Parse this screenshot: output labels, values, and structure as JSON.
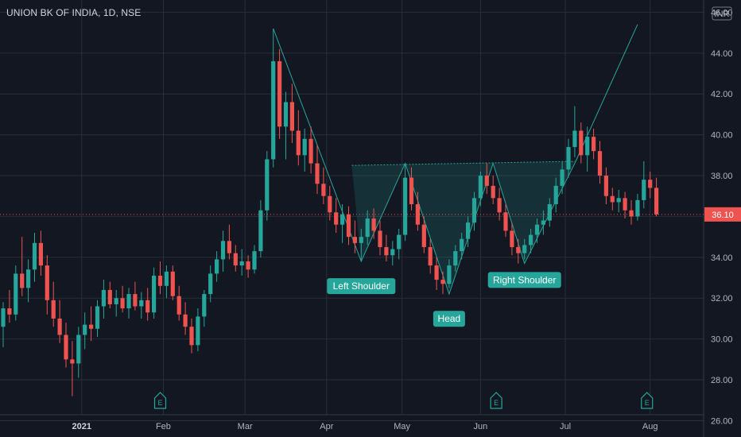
{
  "header": {
    "title": "UNION BK OF INDIA, 1D, NSE"
  },
  "currency": "INR",
  "colors": {
    "background": "#131722",
    "up": "#26a69a",
    "down": "#ef5350",
    "grid": "#2a2e39",
    "pattern": "#26a69a"
  },
  "chart_data": {
    "type": "candlestick",
    "title": "UNION BK OF INDIA, 1D, NSE",
    "ylim": [
      25.2,
      46.6
    ],
    "yticks": [
      "26.00",
      "28.00",
      "30.00",
      "32.00",
      "34.00",
      "36.00",
      "38.00",
      "40.00",
      "42.00",
      "44.00",
      "46.00"
    ],
    "x_tick_labels": [
      "2021",
      "Feb",
      "Mar",
      "Apr",
      "May",
      "Jun",
      "Jul",
      "Aug"
    ],
    "last_price": "36.10",
    "grid": true,
    "series": [
      {
        "ohlc": [
          [
            30.6,
            31.8,
            29.6,
            31.5
          ],
          [
            31.5,
            32.4,
            30.8,
            31.2
          ],
          [
            31.2,
            33.6,
            30.9,
            33.2
          ],
          [
            33.2,
            35.0,
            32.1,
            32.5
          ],
          [
            32.5,
            33.9,
            31.8,
            33.4
          ],
          [
            33.4,
            35.2,
            32.8,
            34.7
          ],
          [
            34.7,
            35.3,
            33.1,
            33.6
          ],
          [
            33.6,
            34.1,
            31.2,
            31.9
          ],
          [
            31.9,
            32.8,
            30.6,
            31.0
          ],
          [
            31.0,
            31.9,
            29.8,
            30.2
          ],
          [
            30.2,
            30.8,
            28.6,
            29.0
          ],
          [
            29.0,
            29.9,
            27.2,
            28.8
          ],
          [
            28.8,
            30.6,
            28.1,
            30.2
          ],
          [
            30.2,
            31.3,
            29.5,
            30.7
          ],
          [
            30.7,
            31.6,
            29.9,
            30.5
          ],
          [
            30.5,
            31.9,
            30.1,
            31.6
          ],
          [
            31.6,
            32.9,
            31.0,
            32.4
          ],
          [
            32.4,
            32.8,
            31.5,
            31.7
          ],
          [
            31.7,
            32.4,
            31.1,
            32.0
          ],
          [
            32.0,
            32.6,
            31.3,
            31.5
          ],
          [
            31.5,
            32.5,
            31.0,
            32.2
          ],
          [
            32.2,
            32.8,
            31.4,
            31.6
          ],
          [
            31.6,
            32.3,
            31.0,
            31.9
          ],
          [
            31.9,
            32.5,
            30.9,
            31.3
          ],
          [
            31.3,
            33.5,
            31.0,
            33.1
          ],
          [
            33.1,
            33.8,
            32.2,
            32.6
          ],
          [
            32.6,
            33.6,
            32.0,
            33.3
          ],
          [
            33.3,
            33.6,
            31.9,
            32.1
          ],
          [
            32.1,
            32.6,
            30.9,
            31.2
          ],
          [
            31.2,
            31.8,
            30.2,
            30.6
          ],
          [
            30.6,
            31.0,
            29.3,
            29.7
          ],
          [
            29.7,
            31.5,
            29.4,
            31.1
          ],
          [
            31.1,
            32.4,
            30.6,
            32.2
          ],
          [
            32.2,
            33.6,
            31.8,
            33.2
          ],
          [
            33.2,
            34.3,
            32.8,
            33.9
          ],
          [
            33.9,
            35.3,
            33.3,
            34.8
          ],
          [
            34.8,
            35.6,
            33.9,
            34.2
          ],
          [
            34.2,
            34.6,
            33.3,
            33.6
          ],
          [
            33.6,
            34.4,
            33.1,
            33.8
          ],
          [
            33.8,
            34.1,
            33.0,
            33.4
          ],
          [
            33.4,
            34.6,
            33.2,
            34.3
          ],
          [
            34.3,
            36.8,
            34.0,
            36.3
          ],
          [
            36.3,
            39.2,
            35.8,
            38.8
          ],
          [
            38.8,
            45.2,
            38.4,
            43.6
          ],
          [
            43.6,
            44.2,
            39.8,
            40.4
          ],
          [
            40.4,
            42.1,
            38.8,
            41.6
          ],
          [
            41.6,
            42.5,
            39.6,
            40.2
          ],
          [
            40.2,
            41.2,
            38.5,
            39.0
          ],
          [
            39.0,
            40.3,
            38.2,
            39.8
          ],
          [
            39.8,
            40.4,
            38.1,
            38.6
          ],
          [
            38.6,
            39.5,
            37.1,
            37.6
          ],
          [
            37.6,
            38.4,
            36.6,
            37.0
          ],
          [
            37.0,
            37.5,
            35.8,
            36.2
          ],
          [
            36.2,
            36.9,
            35.2,
            35.6
          ],
          [
            35.6,
            36.6,
            34.7,
            36.1
          ],
          [
            36.1,
            36.5,
            34.6,
            35.0
          ],
          [
            35.0,
            35.8,
            34.2,
            34.7
          ],
          [
            34.7,
            35.4,
            33.8,
            35.0
          ],
          [
            35.0,
            36.3,
            34.6,
            35.9
          ],
          [
            35.9,
            36.4,
            34.9,
            35.3
          ],
          [
            35.3,
            35.8,
            34.1,
            34.5
          ],
          [
            34.5,
            35.1,
            33.8,
            34.1
          ],
          [
            34.1,
            34.8,
            33.6,
            34.4
          ],
          [
            34.4,
            35.4,
            33.9,
            35.1
          ],
          [
            35.1,
            38.6,
            34.8,
            37.9
          ],
          [
            37.9,
            38.4,
            36.3,
            36.6
          ],
          [
            36.6,
            37.2,
            35.3,
            35.6
          ],
          [
            35.6,
            36.0,
            34.2,
            34.5
          ],
          [
            34.5,
            34.9,
            33.2,
            33.6
          ],
          [
            33.6,
            34.0,
            32.4,
            32.9
          ],
          [
            32.9,
            33.3,
            32.2,
            32.7
          ],
          [
            32.7,
            33.9,
            32.5,
            33.6
          ],
          [
            33.6,
            34.6,
            33.3,
            34.3
          ],
          [
            34.3,
            35.2,
            33.9,
            34.9
          ],
          [
            34.9,
            36.0,
            34.5,
            35.7
          ],
          [
            35.7,
            37.2,
            35.3,
            36.9
          ],
          [
            36.9,
            38.2,
            36.5,
            38.0
          ],
          [
            38.0,
            38.6,
            37.1,
            37.5
          ],
          [
            37.5,
            38.0,
            36.6,
            36.9
          ],
          [
            36.9,
            37.4,
            35.8,
            36.2
          ],
          [
            36.2,
            36.6,
            35.0,
            35.3
          ],
          [
            35.3,
            35.7,
            34.1,
            34.5
          ],
          [
            34.5,
            34.9,
            33.7,
            34.2
          ],
          [
            34.2,
            34.9,
            33.9,
            34.6
          ],
          [
            34.6,
            35.4,
            34.2,
            35.1
          ],
          [
            35.1,
            35.9,
            34.7,
            35.6
          ],
          [
            35.6,
            36.3,
            35.1,
            35.8
          ],
          [
            35.8,
            36.9,
            35.5,
            36.6
          ],
          [
            36.6,
            37.9,
            36.2,
            37.5
          ],
          [
            37.5,
            38.7,
            37.1,
            38.3
          ],
          [
            38.3,
            39.8,
            37.9,
            39.4
          ],
          [
            39.4,
            41.4,
            38.9,
            40.2
          ],
          [
            40.2,
            40.6,
            38.6,
            39.0
          ],
          [
            39.0,
            40.4,
            38.2,
            39.9
          ],
          [
            39.9,
            40.3,
            38.8,
            39.2
          ],
          [
            39.2,
            39.7,
            37.6,
            38.0
          ],
          [
            38.0,
            38.4,
            36.6,
            37.0
          ],
          [
            37.0,
            37.4,
            36.3,
            36.7
          ],
          [
            36.7,
            37.3,
            36.2,
            36.9
          ],
          [
            36.9,
            37.2,
            35.9,
            36.3
          ],
          [
            36.3,
            36.8,
            35.6,
            36.0
          ],
          [
            36.0,
            37.1,
            35.8,
            36.8
          ],
          [
            36.8,
            38.7,
            36.4,
            37.8
          ],
          [
            37.8,
            38.2,
            36.9,
            37.4
          ],
          [
            37.4,
            37.9,
            36.0,
            36.1
          ]
        ]
      }
    ],
    "annotations": [
      "Left Shoulder",
      "Head",
      "Right Shoulder"
    ],
    "events": [
      "E",
      "E",
      "E"
    ]
  }
}
